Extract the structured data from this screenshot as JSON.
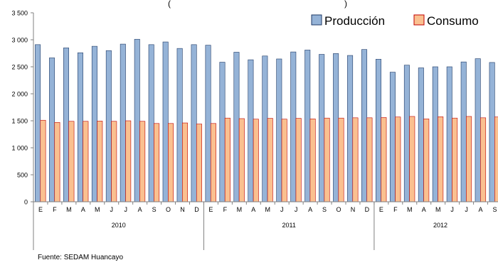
{
  "chart_data": {
    "type": "bar",
    "ylim": [
      0,
      3500
    ],
    "yticks": [
      0,
      500,
      1000,
      1500,
      2000,
      2500,
      3000,
      3500
    ],
    "ytick_labels": [
      "0",
      "500",
      "1 000",
      "1 500",
      "2 000",
      "2 500",
      "3 000",
      "3 500"
    ],
    "title_fragment": "(",
    "title_fragment_right": ")",
    "categories": [
      "E",
      "F",
      "M",
      "A",
      "M",
      "J",
      "J",
      "A",
      "S",
      "O",
      "N",
      "D",
      "E",
      "F",
      "M",
      "A",
      "M",
      "J",
      "J",
      "A",
      "S",
      "O",
      "N",
      "D",
      "E",
      "F",
      "M",
      "A",
      "M",
      "J",
      "J",
      "A",
      "S"
    ],
    "years": [
      {
        "label": "2010",
        "months": 12
      },
      {
        "label": "2011",
        "months": 12
      },
      {
        "label": "2012",
        "months": 9
      }
    ],
    "legend_position": "top-right",
    "series": [
      {
        "name": "Producción",
        "color": "#95B3D7",
        "stroke": "#1F3A66",
        "values": [
          2910,
          2665,
          2850,
          2760,
          2880,
          2800,
          2920,
          3010,
          2910,
          2960,
          2840,
          2910,
          2900,
          2585,
          2770,
          2630,
          2700,
          2645,
          2775,
          2810,
          2730,
          2745,
          2710,
          2820,
          2640,
          2400,
          2530,
          2480,
          2500,
          2500,
          2590,
          2650,
          2580
        ]
      },
      {
        "name": "Consumo",
        "color": "#FAC090",
        "stroke": "#C00000",
        "values": [
          1510,
          1470,
          1490,
          1490,
          1495,
          1490,
          1500,
          1490,
          1450,
          1450,
          1460,
          1440,
          1450,
          1550,
          1540,
          1530,
          1545,
          1530,
          1545,
          1535,
          1550,
          1550,
          1555,
          1555,
          1560,
          1570,
          1580,
          1535,
          1575,
          1550,
          1580,
          1555,
          1570
        ]
      }
    ]
  },
  "source": "Fuente: SEDAM Huancayo"
}
